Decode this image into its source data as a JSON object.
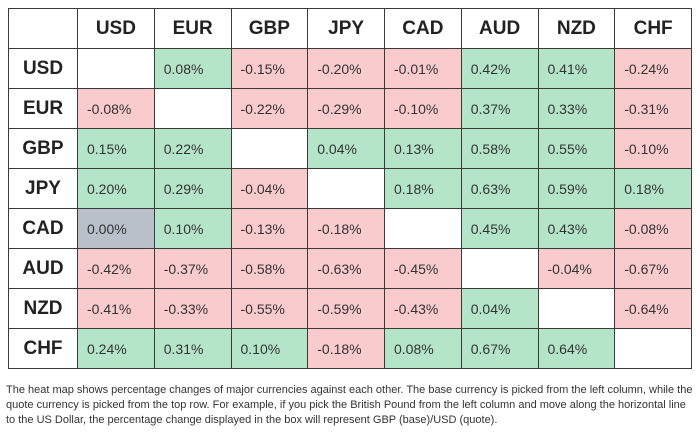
{
  "table": {
    "columns": [
      "USD",
      "EUR",
      "GBP",
      "JPY",
      "CAD",
      "AUD",
      "NZD",
      "CHF"
    ],
    "rows": [
      {
        "label": "USD",
        "cells": [
          null,
          "0.08%",
          "-0.15%",
          "-0.20%",
          "-0.01%",
          "0.42%",
          "0.41%",
          "-0.24%"
        ]
      },
      {
        "label": "EUR",
        "cells": [
          "-0.08%",
          null,
          "-0.22%",
          "-0.29%",
          "-0.10%",
          "0.37%",
          "0.33%",
          "-0.31%"
        ]
      },
      {
        "label": "GBP",
        "cells": [
          "0.15%",
          "0.22%",
          null,
          "0.04%",
          "0.13%",
          "0.58%",
          "0.55%",
          "-0.10%"
        ]
      },
      {
        "label": "JPY",
        "cells": [
          "0.20%",
          "0.29%",
          "-0.04%",
          null,
          "0.18%",
          "0.63%",
          "0.59%",
          "0.18%"
        ]
      },
      {
        "label": "CAD",
        "cells": [
          "0.00%",
          "0.10%",
          "-0.13%",
          "-0.18%",
          null,
          "0.45%",
          "0.43%",
          "-0.08%"
        ]
      },
      {
        "label": "AUD",
        "cells": [
          "-0.42%",
          "-0.37%",
          "-0.58%",
          "-0.63%",
          "-0.45%",
          null,
          "-0.04%",
          "-0.67%"
        ]
      },
      {
        "label": "NZD",
        "cells": [
          "-0.41%",
          "-0.33%",
          "-0.55%",
          "-0.59%",
          "-0.43%",
          "0.04%",
          null,
          "-0.64%"
        ]
      },
      {
        "label": "CHF",
        "cells": [
          "0.24%",
          "0.31%",
          "0.10%",
          "-0.18%",
          "0.08%",
          "0.67%",
          "0.64%",
          null
        ]
      }
    ],
    "colors": {
      "positive": "#b5e5c9",
      "negative": "#f9cbcd",
      "zero": "#b9c0ca",
      "empty": "#ffffff"
    }
  },
  "footnote": "The heat map shows percentage changes of major currencies against each other. The base currency is picked from the left column, while the quote currency is picked from the top row. For example, if you pick the British Pound from the left column and move along the horizontal line to the US Dollar, the percentage change displayed in the box will represent GBP (base)/USD (quote)."
}
